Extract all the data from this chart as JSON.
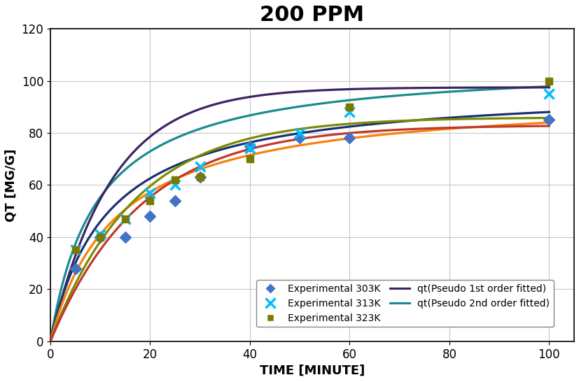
{
  "title": "200 PPM",
  "xlabel": "TIME [MINUTE]",
  "ylabel": "QT [MG/G]",
  "xlim": [
    0,
    105
  ],
  "ylim": [
    0,
    120
  ],
  "xticks": [
    0,
    20,
    40,
    60,
    80,
    100
  ],
  "yticks": [
    0,
    20,
    40,
    60,
    80,
    100,
    120
  ],
  "exp_303K_x": [
    5,
    10,
    15,
    20,
    25,
    30,
    40,
    50,
    60,
    100
  ],
  "exp_303K_y": [
    28,
    40,
    40,
    48,
    54,
    63,
    75,
    78,
    78,
    85
  ],
  "exp_313K_x": [
    5,
    10,
    15,
    20,
    25,
    30,
    40,
    50,
    60,
    100
  ],
  "exp_313K_y": [
    35,
    41,
    47,
    57,
    60,
    67,
    74,
    80,
    88,
    95
  ],
  "exp_323K_x": [
    5,
    10,
    15,
    20,
    25,
    30,
    40,
    60,
    100
  ],
  "exp_323K_y": [
    35,
    40,
    47,
    54,
    62,
    63,
    70,
    90,
    100
  ],
  "exp_303K_color": "#4472C4",
  "exp_313K_color": "#00BFFF",
  "exp_323K_color": "#7A7A00",
  "color_teal": "#1A8B8F",
  "color_purple": "#3D2464",
  "color_navy": "#1A3070",
  "color_orange": "#F5820D",
  "color_olive": "#7A8B00",
  "color_red": "#C0392B",
  "background_color": "#FFFFFF",
  "grid_color": "#C8C8C8",
  "title_fontsize": 22,
  "label_fontsize": 13,
  "tick_fontsize": 12
}
